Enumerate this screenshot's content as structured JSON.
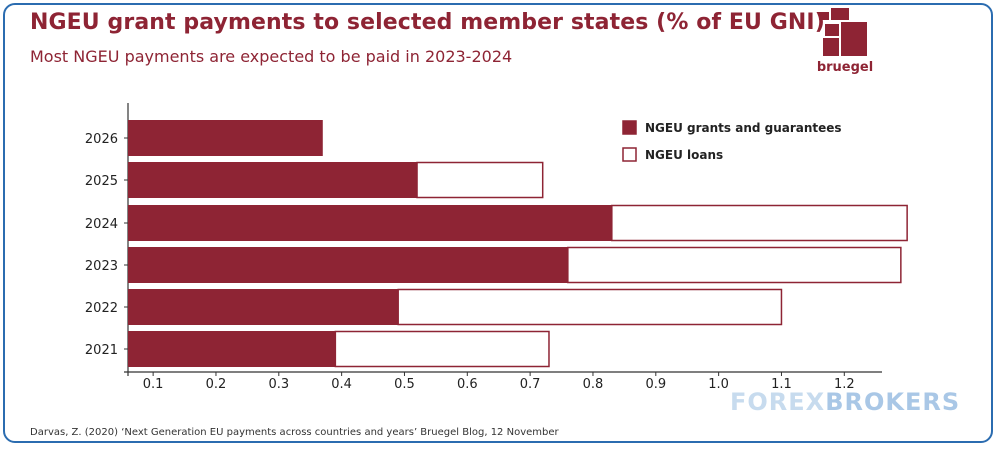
{
  "title": "NGEU grant payments to selected member states (% of EU GNI)",
  "subtitle": "Most NGEU payments are expected to be paid in 2023-2024",
  "logo_text": "bruegel",
  "source": "Darvas, Z. (2020) ‘Next Generation EU payments across countries and years’ Bruegel Blog, 12 November",
  "watermark": {
    "part1": "FOREX",
    "part2": "BROKERS"
  },
  "colors": {
    "grants": "#8e2434",
    "loans": "#ffffff",
    "accent": "#8e2434",
    "frame": "#2b6cb0"
  },
  "chart_data": {
    "type": "bar",
    "orientation": "horizontal",
    "stacked": true,
    "categories": [
      "2026",
      "2025",
      "2024",
      "2023",
      "2022",
      "2021"
    ],
    "series": [
      {
        "name": "NGEU grants and guarantees",
        "values": [
          0.31,
          0.46,
          0.77,
          0.7,
          0.43,
          0.33
        ]
      },
      {
        "name": "NGEU loans",
        "values": [
          0.0,
          0.2,
          0.47,
          0.53,
          0.61,
          0.34
        ]
      }
    ],
    "xticks": [
      "0.1",
      "0.2",
      "0.3",
      "0.4",
      "0.5",
      "0.6",
      "0.7",
      "0.8",
      "0.9",
      "1.0",
      "1.1",
      "1.2"
    ],
    "xlim": [
      0.06,
      1.26
    ],
    "legend_position": "top-right",
    "grid": false
  }
}
